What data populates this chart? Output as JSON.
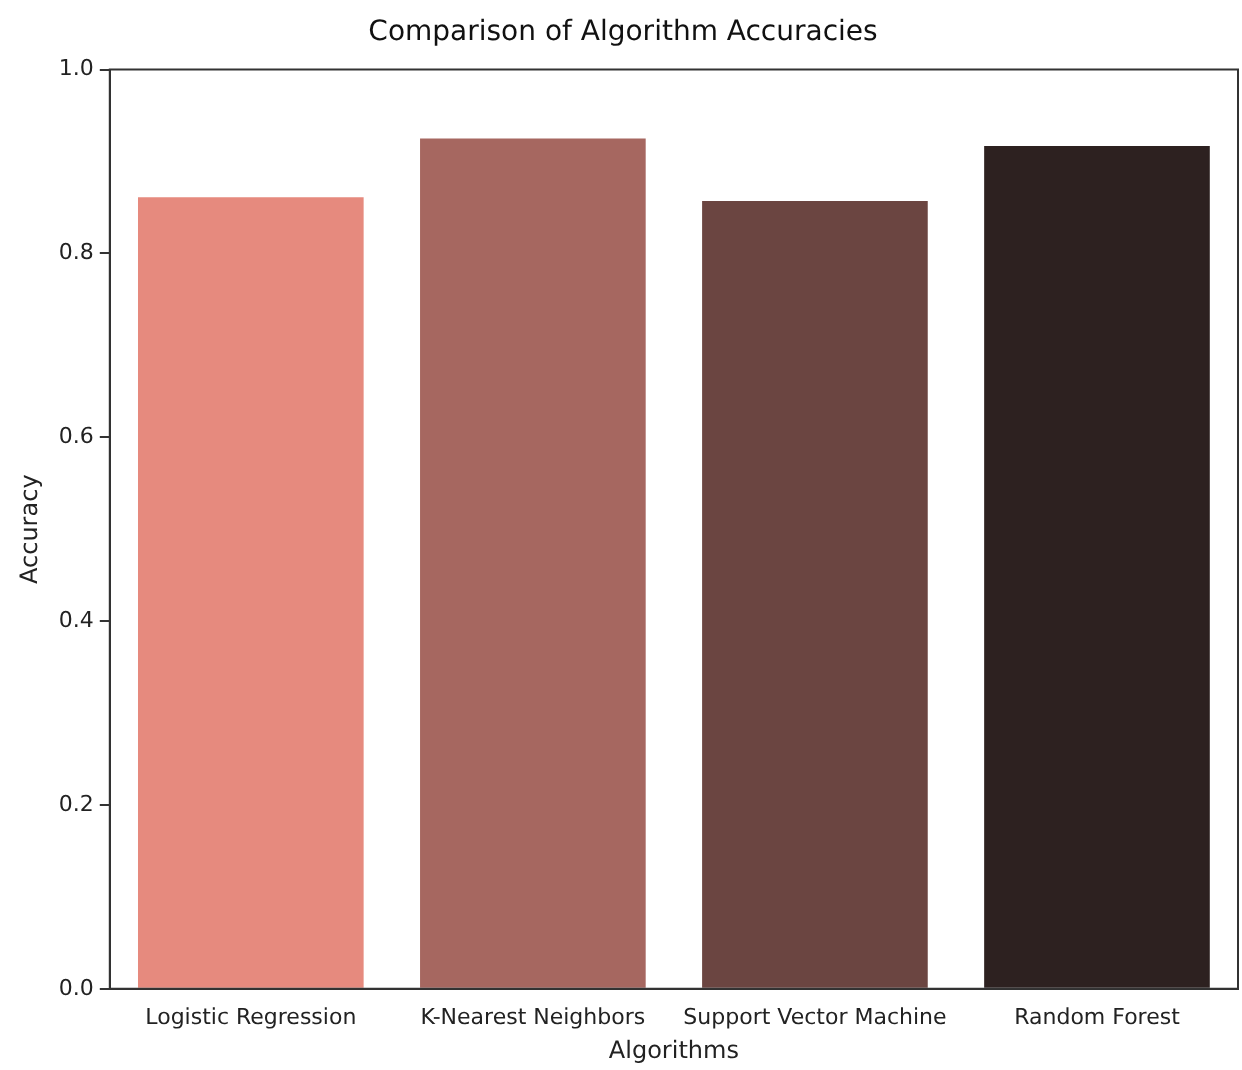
{
  "chart_data": {
    "type": "bar",
    "title": "Comparison of Algorithm Accuracies",
    "xlabel": "Algorithms",
    "ylabel": "Accuracy",
    "categories": [
      "Logistic Regression",
      "K-Nearest Neighbors",
      "Support Vector Machine",
      "Random Forest"
    ],
    "values": [
      0.861,
      0.925,
      0.857,
      0.917
    ],
    "colors": [
      "#e68a7e",
      "#a66760",
      "#6b4541",
      "#2d2120"
    ],
    "ylim": [
      0,
      1
    ],
    "yticks": [
      {
        "value": 0,
        "label": "0.0"
      },
      0.2,
      0.4,
      0.6,
      0.8,
      {
        "value": 1,
        "label": "1.0"
      }
    ],
    "grid": false,
    "legend": false
  }
}
